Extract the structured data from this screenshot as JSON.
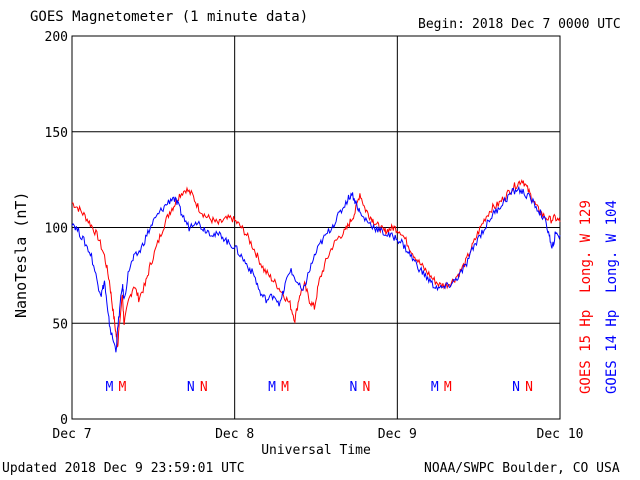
{
  "header": {
    "title": "GOES Magnetometer (1 minute data)",
    "begin_label": "Begin:",
    "begin_value": "2018 Dec 7 0000 UTC"
  },
  "footer": {
    "updated": "Updated 2018 Dec  9 23:59:01 UTC",
    "source": "NOAA/SWPC Boulder, CO USA"
  },
  "colors": {
    "goes15": "#ff0000",
    "goes14": "#0000ff",
    "grid": "#000000"
  },
  "chart_data": {
    "type": "line",
    "title": "GOES Magnetometer (1 minute data)",
    "xlabel": "Universal Time",
    "ylabel": "NanoTesla (nT)",
    "ylim": [
      0,
      200
    ],
    "xlim": [
      0,
      3
    ],
    "x_unit": "days since Dec 7 0000 UTC",
    "x_ticks": [
      {
        "x": 0,
        "label": "Dec 7"
      },
      {
        "x": 1,
        "label": "Dec 8"
      },
      {
        "x": 2,
        "label": "Dec 9"
      },
      {
        "x": 3,
        "label": "Dec 10"
      }
    ],
    "y_ticks": [
      0,
      50,
      100,
      150,
      200
    ],
    "grid": true,
    "legend_position": "right",
    "series": [
      {
        "name": "GOES 15 Hp",
        "label_suffix": "Long. W 129",
        "color": "#ff0000",
        "points": [
          [
            0.0,
            113
          ],
          [
            0.04,
            110
          ],
          [
            0.08,
            106
          ],
          [
            0.12,
            101
          ],
          [
            0.16,
            95
          ],
          [
            0.2,
            85
          ],
          [
            0.23,
            72
          ],
          [
            0.25,
            58
          ],
          [
            0.27,
            45
          ],
          [
            0.28,
            38
          ],
          [
            0.29,
            48
          ],
          [
            0.31,
            65
          ],
          [
            0.32,
            50
          ],
          [
            0.35,
            62
          ],
          [
            0.38,
            70
          ],
          [
            0.41,
            63
          ],
          [
            0.45,
            70
          ],
          [
            0.48,
            80
          ],
          [
            0.52,
            90
          ],
          [
            0.56,
            100
          ],
          [
            0.6,
            108
          ],
          [
            0.63,
            112
          ],
          [
            0.66,
            117
          ],
          [
            0.7,
            120
          ],
          [
            0.74,
            117
          ],
          [
            0.78,
            110
          ],
          [
            0.82,
            106
          ],
          [
            0.86,
            104
          ],
          [
            0.9,
            102
          ],
          [
            0.94,
            104
          ],
          [
            0.98,
            105
          ],
          [
            1.02,
            102
          ],
          [
            1.06,
            98
          ],
          [
            1.1,
            92
          ],
          [
            1.14,
            85
          ],
          [
            1.18,
            78
          ],
          [
            1.22,
            74
          ],
          [
            1.26,
            70
          ],
          [
            1.3,
            65
          ],
          [
            1.34,
            60
          ],
          [
            1.37,
            52
          ],
          [
            1.4,
            65
          ],
          [
            1.43,
            70
          ],
          [
            1.46,
            62
          ],
          [
            1.49,
            58
          ],
          [
            1.52,
            72
          ],
          [
            1.56,
            82
          ],
          [
            1.6,
            90
          ],
          [
            1.64,
            95
          ],
          [
            1.68,
            98
          ],
          [
            1.71,
            103
          ],
          [
            1.74,
            108
          ],
          [
            1.77,
            118
          ],
          [
            1.8,
            110
          ],
          [
            1.83,
            106
          ],
          [
            1.86,
            103
          ],
          [
            1.89,
            100
          ],
          [
            1.92,
            98
          ],
          [
            1.95,
            99
          ],
          [
            1.98,
            100
          ],
          [
            2.02,
            98
          ],
          [
            2.06,
            92
          ],
          [
            2.1,
            86
          ],
          [
            2.14,
            81
          ],
          [
            2.18,
            77
          ],
          [
            2.22,
            73
          ],
          [
            2.26,
            70
          ],
          [
            2.3,
            70
          ],
          [
            2.34,
            72
          ],
          [
            2.38,
            76
          ],
          [
            2.42,
            82
          ],
          [
            2.46,
            90
          ],
          [
            2.5,
            98
          ],
          [
            2.54,
            105
          ],
          [
            2.58,
            110
          ],
          [
            2.62,
            112
          ],
          [
            2.66,
            116
          ],
          [
            2.7,
            120
          ],
          [
            2.74,
            123
          ],
          [
            2.77,
            125
          ],
          [
            2.8,
            120
          ],
          [
            2.83,
            115
          ],
          [
            2.86,
            110
          ],
          [
            2.9,
            106
          ],
          [
            2.94,
            104
          ],
          [
            2.97,
            105
          ],
          [
            3.0,
            103
          ]
        ]
      },
      {
        "name": "GOES 14 Hp",
        "label_suffix": "Long. W 104",
        "color": "#0000ff",
        "points": [
          [
            0.0,
            103
          ],
          [
            0.04,
            98
          ],
          [
            0.08,
            92
          ],
          [
            0.12,
            85
          ],
          [
            0.16,
            70
          ],
          [
            0.18,
            65
          ],
          [
            0.2,
            72
          ],
          [
            0.22,
            55
          ],
          [
            0.24,
            45
          ],
          [
            0.27,
            36
          ],
          [
            0.29,
            55
          ],
          [
            0.31,
            70
          ],
          [
            0.32,
            62
          ],
          [
            0.35,
            78
          ],
          [
            0.38,
            84
          ],
          [
            0.42,
            88
          ],
          [
            0.46,
            96
          ],
          [
            0.5,
            103
          ],
          [
            0.54,
            108
          ],
          [
            0.58,
            112
          ],
          [
            0.62,
            116
          ],
          [
            0.65,
            112
          ],
          [
            0.68,
            106
          ],
          [
            0.72,
            100
          ],
          [
            0.76,
            104
          ],
          [
            0.8,
            100
          ],
          [
            0.84,
            98
          ],
          [
            0.88,
            96
          ],
          [
            0.92,
            96
          ],
          [
            0.96,
            92
          ],
          [
            1.0,
            90
          ],
          [
            1.04,
            85
          ],
          [
            1.08,
            80
          ],
          [
            1.12,
            75
          ],
          [
            1.16,
            65
          ],
          [
            1.2,
            62
          ],
          [
            1.24,
            65
          ],
          [
            1.28,
            60
          ],
          [
            1.31,
            70
          ],
          [
            1.34,
            78
          ],
          [
            1.38,
            72
          ],
          [
            1.42,
            66
          ],
          [
            1.45,
            75
          ],
          [
            1.49,
            85
          ],
          [
            1.53,
            92
          ],
          [
            1.57,
            97
          ],
          [
            1.61,
            102
          ],
          [
            1.65,
            108
          ],
          [
            1.69,
            114
          ],
          [
            1.72,
            118
          ],
          [
            1.75,
            112
          ],
          [
            1.78,
            106
          ],
          [
            1.82,
            103
          ],
          [
            1.86,
            100
          ],
          [
            1.9,
            98
          ],
          [
            1.94,
            96
          ],
          [
            1.98,
            95
          ],
          [
            2.02,
            93
          ],
          [
            2.06,
            88
          ],
          [
            2.1,
            83
          ],
          [
            2.14,
            78
          ],
          [
            2.18,
            74
          ],
          [
            2.22,
            70
          ],
          [
            2.26,
            68
          ],
          [
            2.3,
            69
          ],
          [
            2.34,
            71
          ],
          [
            2.38,
            75
          ],
          [
            2.42,
            80
          ],
          [
            2.46,
            88
          ],
          [
            2.5,
            95
          ],
          [
            2.54,
            100
          ],
          [
            2.58,
            106
          ],
          [
            2.62,
            110
          ],
          [
            2.66,
            114
          ],
          [
            2.7,
            118
          ],
          [
            2.74,
            120
          ],
          [
            2.78,
            118
          ],
          [
            2.82,
            115
          ],
          [
            2.86,
            110
          ],
          [
            2.9,
            105
          ],
          [
            2.93,
            98
          ],
          [
            2.95,
            88
          ],
          [
            2.97,
            96
          ],
          [
            3.0,
            96
          ]
        ]
      }
    ],
    "annotations": [
      {
        "x": 0.23,
        "text": "M",
        "color": "#0000ff"
      },
      {
        "x": 0.31,
        "text": "M",
        "color": "#ff0000"
      },
      {
        "x": 0.73,
        "text": "N",
        "color": "#0000ff"
      },
      {
        "x": 0.81,
        "text": "N",
        "color": "#ff0000"
      },
      {
        "x": 1.23,
        "text": "M",
        "color": "#0000ff"
      },
      {
        "x": 1.31,
        "text": "M",
        "color": "#ff0000"
      },
      {
        "x": 1.73,
        "text": "N",
        "color": "#0000ff"
      },
      {
        "x": 1.81,
        "text": "N",
        "color": "#ff0000"
      },
      {
        "x": 2.23,
        "text": "M",
        "color": "#0000ff"
      },
      {
        "x": 2.31,
        "text": "M",
        "color": "#ff0000"
      },
      {
        "x": 2.73,
        "text": "N",
        "color": "#0000ff"
      },
      {
        "x": 2.81,
        "text": "N",
        "color": "#ff0000"
      }
    ]
  }
}
